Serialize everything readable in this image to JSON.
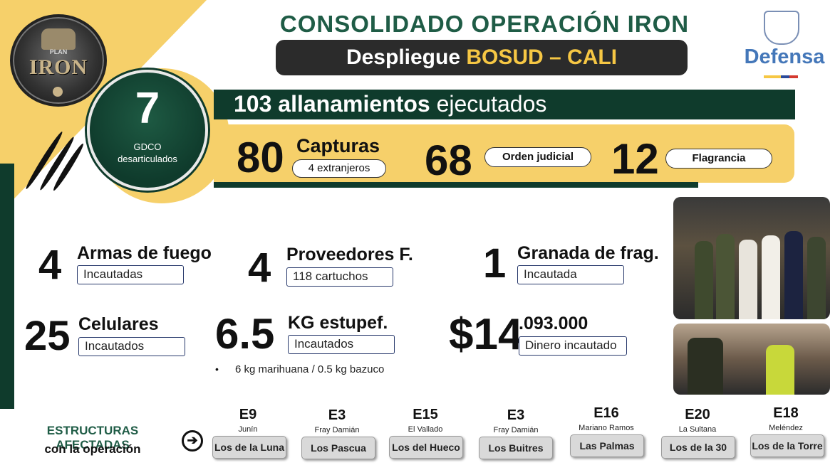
{
  "header": {
    "title": "CONSOLIDADO OPERACIÓN IRON",
    "subtitle_prefix": "Despliegue ",
    "subtitle_highlight": "BOSUD – CALI",
    "ministry": "Defensa"
  },
  "logo": {
    "plan": "PLAN",
    "name": "IRON"
  },
  "gdco": {
    "value": "7",
    "label_line1": "GDCO",
    "label_line2": "desarticulados"
  },
  "allanamientos": {
    "value": "103 allanamientos",
    "suffix": " ejecutados"
  },
  "capturas": {
    "value": "80",
    "label": "Capturas",
    "extranjeros": "4 extranjeros",
    "orden_value": "68",
    "orden_label": "Orden judicial",
    "flagrancia_value": "12",
    "flagrancia_label": "Flagrancia"
  },
  "stats": {
    "armas": {
      "value": "4",
      "label": "Armas de fuego",
      "sub": "Incautadas"
    },
    "proveedores": {
      "value": "4",
      "label": "Proveedores F.",
      "sub": "118 cartuchos"
    },
    "granada": {
      "value": "1",
      "label": "Granada de frag.",
      "sub": "Incautada"
    },
    "celulares": {
      "value": "25",
      "label": "Celulares",
      "sub": "Incautados"
    },
    "estupef": {
      "value": "6.5",
      "label": "KG estupef.",
      "sub": "Incautados",
      "note": "6 kg marihuana / 0.5 kg bazuco"
    },
    "dinero": {
      "value": "$14",
      "cents": ".093.000",
      "sub": "Dinero incautado"
    }
  },
  "estructuras": {
    "title": "ESTRUCTURAS AFECTADAS",
    "subtitle": "con la operación",
    "items": [
      {
        "code": "E9",
        "place": "Junín",
        "name": "Los de la Luna"
      },
      {
        "code": "E3",
        "place": "Fray Damián",
        "name": "Los Pascua"
      },
      {
        "code": "E15",
        "place": "El Vallado",
        "name": "Los del Hueco"
      },
      {
        "code": "E3",
        "place": "Fray Damián",
        "name": "Los Buitres"
      },
      {
        "code": "E16",
        "place": "Mariano Ramos",
        "name": "Las Palmas"
      },
      {
        "code": "E20",
        "place": "La Sultana",
        "name": "Los de la 30"
      },
      {
        "code": "E18",
        "place": "Meléndez",
        "name": "Los de la Torre"
      }
    ]
  },
  "colors": {
    "green": "#0f3b2c",
    "yellow": "#f6d06a",
    "title_green": "#1f5c46",
    "defensa_blue": "#4477b9"
  },
  "icons": [
    "claw-marks-icon",
    "arrow-right-circle-icon",
    "colombia-shield-icon"
  ]
}
